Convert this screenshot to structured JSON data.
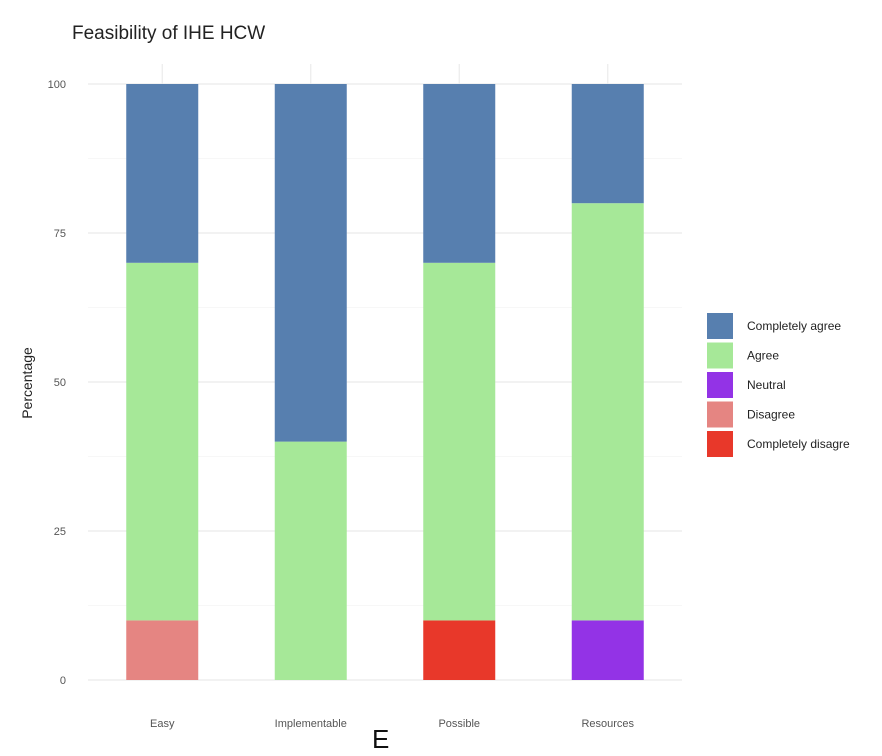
{
  "chart_data": {
    "type": "bar",
    "stacked": true,
    "title": "Feasibility of IHE  HCW",
    "xlabel": "",
    "ylabel": "Percentage",
    "panel_label": "E",
    "categories": [
      "Easy",
      "Implementable",
      "Possible",
      "Resources"
    ],
    "ylim": [
      0,
      100
    ],
    "yticks": [
      0,
      25,
      50,
      75,
      100
    ],
    "grid": true,
    "legend_position": "right",
    "series": [
      {
        "name": "Completely disagree",
        "legend_label": "Completely disagre",
        "color": "#e8382a",
        "values": [
          0,
          0,
          10,
          0
        ]
      },
      {
        "name": "Disagree",
        "legend_label": "Disagree",
        "color": "#e58582",
        "values": [
          10,
          0,
          0,
          0
        ]
      },
      {
        "name": "Neutral",
        "legend_label": "Neutral",
        "color": "#9333e6",
        "values": [
          0,
          0,
          0,
          10
        ]
      },
      {
        "name": "Agree",
        "legend_label": "Agree",
        "color": "#a6e898",
        "values": [
          60,
          40,
          60,
          70
        ]
      },
      {
        "name": "Completely agree",
        "legend_label": "Completely agree",
        "color": "#577faf",
        "values": [
          30,
          60,
          30,
          20
        ]
      }
    ],
    "legend_order": [
      "Completely agree",
      "Agree",
      "Neutral",
      "Disagree",
      "Completely disagree"
    ]
  }
}
